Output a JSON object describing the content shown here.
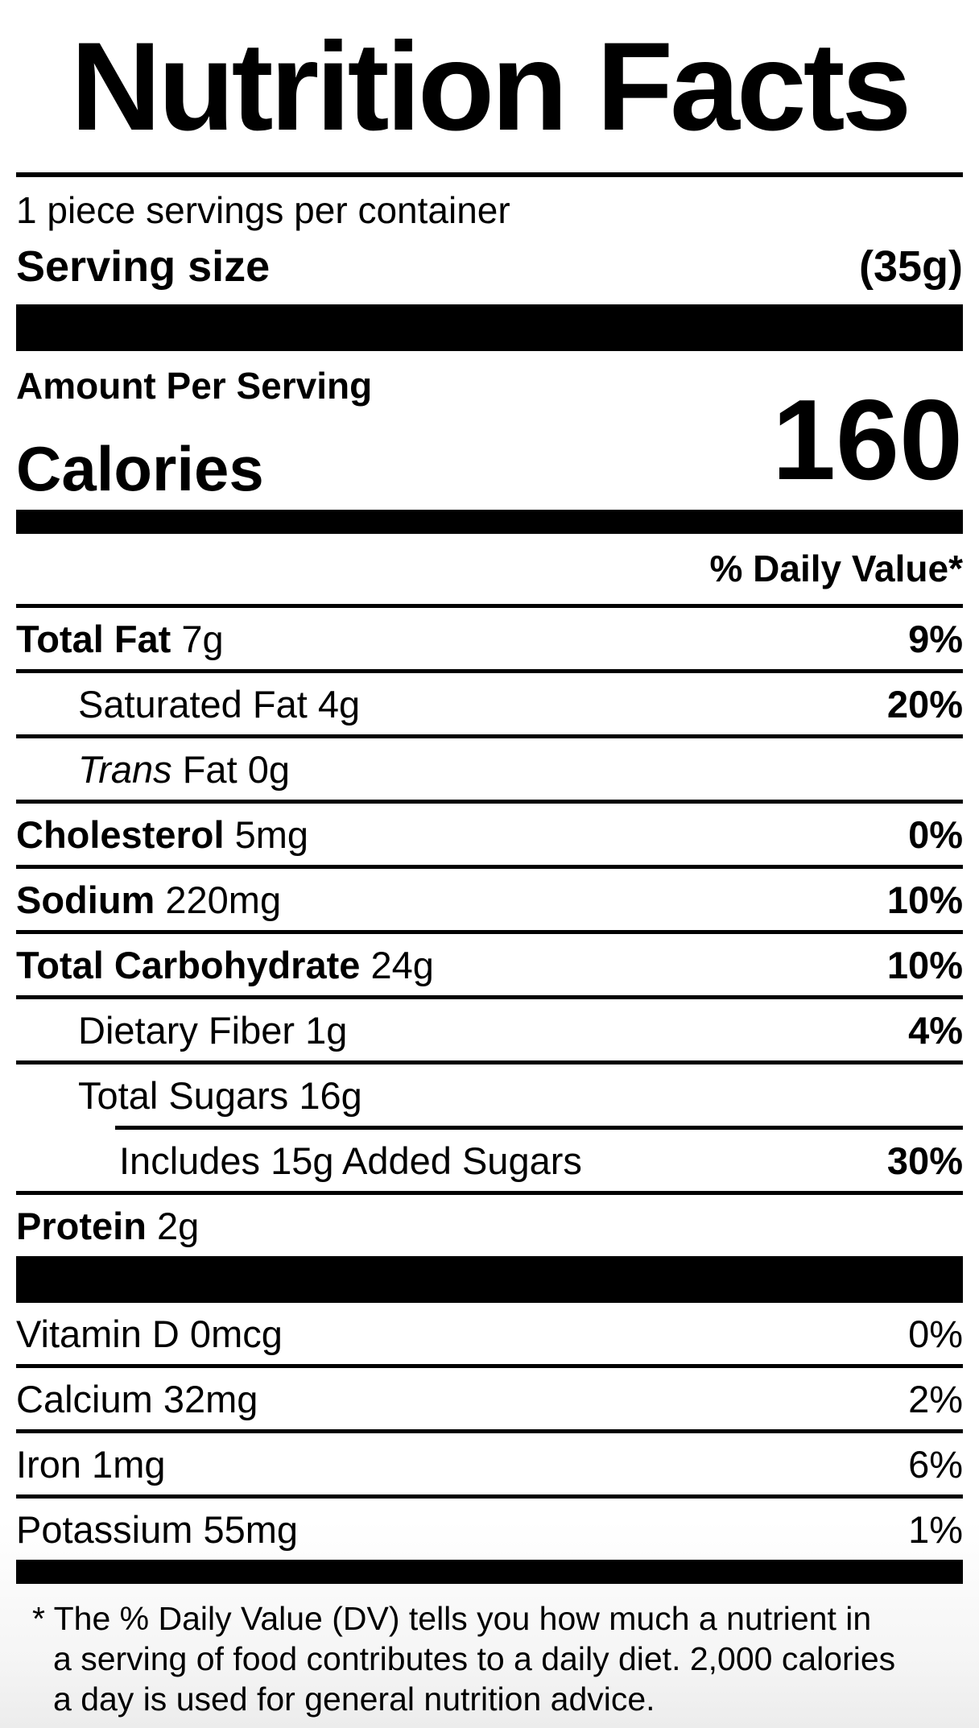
{
  "page": {
    "background": "#ffffff",
    "text_color": "#000000",
    "bar_color": "#000000"
  },
  "label": {
    "title": "Nutrition Facts",
    "servings_per_container": "1 piece servings per container",
    "serving_size": {
      "label": "Serving size",
      "value": "(35g)"
    },
    "calories": {
      "heading": "Amount Per Serving",
      "label": "Calories",
      "value": "160"
    },
    "daily_value_header": "% Daily Value*",
    "nutrient_rows": [
      {
        "name": "Total Fat",
        "amount": "7g",
        "dv": "9%",
        "bold_name": true,
        "indent": 0,
        "rule": "full"
      },
      {
        "name": "Saturated Fat",
        "amount": "4g",
        "dv": "20%",
        "bold_name": false,
        "indent": 1,
        "rule": "full"
      },
      {
        "name_italic": "Trans",
        "name": "Fat",
        "amount": "0g",
        "dv": "",
        "bold_name": false,
        "indent": 1,
        "rule": "full"
      },
      {
        "name": "Cholesterol",
        "amount": "5mg",
        "dv": "0%",
        "bold_name": true,
        "indent": 0,
        "rule": "full"
      },
      {
        "name": "Sodium",
        "amount": "220mg",
        "dv": "10%",
        "bold_name": true,
        "indent": 0,
        "rule": "full"
      },
      {
        "name": "Total Carbohydrate",
        "amount": "24g",
        "dv": "10%",
        "bold_name": true,
        "indent": 0,
        "rule": "full"
      },
      {
        "name": "Dietary Fiber",
        "amount": "1g",
        "dv": "4%",
        "bold_name": false,
        "indent": 1,
        "rule": "full"
      },
      {
        "name": "Total Sugars",
        "amount": "16g",
        "dv": "",
        "bold_name": false,
        "indent": 1,
        "rule": "full"
      },
      {
        "name": "Includes 15g Added Sugars",
        "amount": "",
        "dv": "30%",
        "bold_name": false,
        "indent": 2,
        "rule": "partial"
      },
      {
        "name": "Protein",
        "amount": "2g",
        "dv": "",
        "bold_name": true,
        "indent": 0,
        "rule": "full"
      }
    ],
    "vitamin_rows": [
      {
        "name": "Vitamin D",
        "amount": "0mcg",
        "dv": "0%",
        "rule": "none"
      },
      {
        "name": "Calcium",
        "amount": "32mg",
        "dv": "2%",
        "rule": "full"
      },
      {
        "name": "Iron",
        "amount": "1mg",
        "dv": "6%",
        "rule": "full"
      },
      {
        "name": "Potassium",
        "amount": "55mg",
        "dv": "1%",
        "rule": "full"
      }
    ],
    "footnote_lines": [
      "* The % Daily Value (DV) tells you how much a nutrient in",
      "a serving of food contributes to a daily diet. 2,000 calories",
      "a day is used for general nutrition advice."
    ]
  }
}
